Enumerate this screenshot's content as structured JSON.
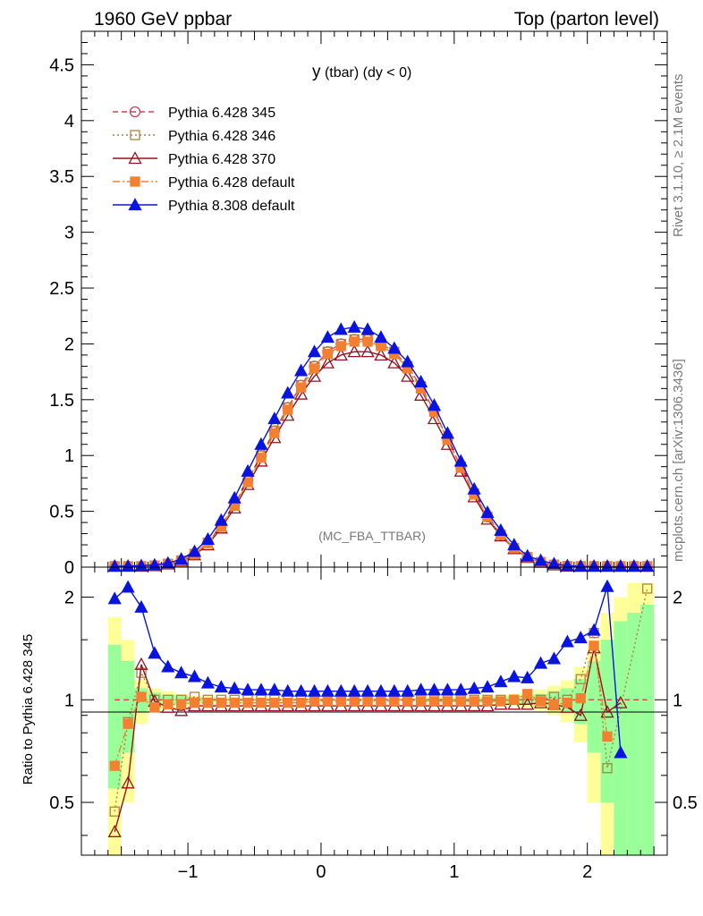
{
  "header": {
    "left": "1960 GeV ppbar",
    "right": "Top (parton level)"
  },
  "plot": {
    "title_main": "y",
    "title_rest": " (tbar) (dy < 0)",
    "watermark": "(MC_FBA_TTBAR)",
    "side_text_1": "Rivet 3.1.10, ≥ 2.1M events",
    "side_text_2": "mcplots.cern.ch [arXiv:1306.3436]",
    "ratio_ylabel": "Ratio to Pythia 6.428 345"
  },
  "colors": {
    "p345": "#d0405a",
    "p346": "#b08040",
    "p370": "#9a1020",
    "p6def": "#f28030",
    "p8def": "#0a14e0",
    "band_yellow": "#ffff99",
    "band_green": "#99ff99"
  },
  "chart_data": [
    {
      "type": "line",
      "panel": "main",
      "xlim": [
        -1.8,
        2.6
      ],
      "ylim": [
        0,
        4.8
      ],
      "yticks": [
        "0",
        "0.5",
        "1",
        "1.5",
        "2",
        "2.5",
        "3",
        "3.5",
        "4",
        "4.5"
      ],
      "legend_position": "top-left",
      "x": [
        -1.55,
        -1.45,
        -1.35,
        -1.25,
        -1.15,
        -1.05,
        -0.95,
        -0.85,
        -0.75,
        -0.65,
        -0.55,
        -0.45,
        -0.35,
        -0.25,
        -0.15,
        -0.05,
        0.05,
        0.15,
        0.25,
        0.35,
        0.45,
        0.55,
        0.65,
        0.75,
        0.85,
        0.95,
        1.05,
        1.15,
        1.25,
        1.35,
        1.45,
        1.55,
        1.65,
        1.75,
        1.85,
        1.95,
        2.05,
        2.15,
        2.25,
        2.35,
        2.45
      ],
      "series": [
        {
          "name": "Pythia 6.428 345",
          "key": "p345",
          "marker": "circle-open",
          "dash": "6,4",
          "values": [
            0.003,
            0.004,
            0.007,
            0.014,
            0.03,
            0.06,
            0.12,
            0.22,
            0.37,
            0.56,
            0.78,
            1.0,
            1.22,
            1.43,
            1.63,
            1.8,
            1.93,
            2.0,
            2.04,
            2.04,
            2.0,
            1.93,
            1.8,
            1.62,
            1.4,
            1.15,
            0.9,
            0.66,
            0.45,
            0.29,
            0.17,
            0.09,
            0.045,
            0.021,
            0.009,
            0.004,
            0.002,
            0.001,
            0.0005,
            0.0002,
            0.0001
          ]
        },
        {
          "name": "Pythia 6.428 346",
          "key": "p346",
          "marker": "square-open",
          "dash": "2,3",
          "values": [
            0.003,
            0.004,
            0.007,
            0.014,
            0.03,
            0.06,
            0.12,
            0.22,
            0.37,
            0.56,
            0.78,
            1.0,
            1.22,
            1.43,
            1.63,
            1.8,
            1.93,
            2.0,
            2.04,
            2.04,
            2.0,
            1.93,
            1.8,
            1.62,
            1.4,
            1.15,
            0.9,
            0.66,
            0.45,
            0.29,
            0.17,
            0.09,
            0.045,
            0.021,
            0.009,
            0.004,
            0.002,
            0.001,
            0.0005,
            0.0002,
            0.0001
          ]
        },
        {
          "name": "Pythia 6.428 370",
          "key": "p370",
          "marker": "triangle-open",
          "dash": "",
          "values": [
            0.002,
            0.003,
            0.007,
            0.013,
            0.028,
            0.055,
            0.11,
            0.2,
            0.35,
            0.53,
            0.74,
            0.95,
            1.16,
            1.36,
            1.55,
            1.71,
            1.83,
            1.9,
            1.93,
            1.93,
            1.9,
            1.83,
            1.71,
            1.54,
            1.33,
            1.1,
            0.86,
            0.63,
            0.43,
            0.28,
            0.165,
            0.087,
            0.043,
            0.02,
            0.009,
            0.004,
            0.002,
            0.001,
            0.0005,
            0.0002,
            0.0001
          ]
        },
        {
          "name": "Pythia 6.428 default",
          "key": "p6def",
          "marker": "square-filled",
          "dash": "8,3,2,3",
          "values": [
            0.002,
            0.003,
            0.007,
            0.014,
            0.029,
            0.058,
            0.117,
            0.215,
            0.36,
            0.55,
            0.76,
            0.98,
            1.2,
            1.41,
            1.61,
            1.78,
            1.91,
            1.98,
            2.02,
            2.02,
            1.98,
            1.91,
            1.78,
            1.6,
            1.39,
            1.14,
            0.89,
            0.65,
            0.45,
            0.29,
            0.17,
            0.09,
            0.045,
            0.021,
            0.009,
            0.004,
            0.002,
            0.001,
            0.0005,
            0.0002,
            0.0001
          ]
        },
        {
          "name": "Pythia 8.308 default",
          "key": "p8def",
          "marker": "triangle-filled",
          "dash": "",
          "values": [
            0.006,
            0.009,
            0.013,
            0.019,
            0.036,
            0.072,
            0.14,
            0.25,
            0.42,
            0.62,
            0.86,
            1.1,
            1.33,
            1.56,
            1.76,
            1.93,
            2.06,
            2.13,
            2.15,
            2.13,
            2.06,
            1.96,
            1.84,
            1.66,
            1.45,
            1.2,
            0.95,
            0.7,
            0.49,
            0.33,
            0.2,
            0.1,
            0.06,
            0.03,
            0.013,
            0.006,
            0.003,
            0.002,
            0.001,
            0.0005,
            0.0003
          ]
        }
      ]
    },
    {
      "type": "line",
      "panel": "ratio",
      "xlim": [
        -1.8,
        2.6
      ],
      "ylim": [
        0.35,
        2.45
      ],
      "ylabel": "Ratio to Pythia 6.428 345",
      "xticks": [
        "−1",
        "0",
        "1",
        "2"
      ],
      "yticks": [
        "0.5",
        "1",
        "2"
      ],
      "x": [
        -1.55,
        -1.45,
        -1.35,
        -1.25,
        -1.15,
        -1.05,
        -0.95,
        -0.85,
        -0.75,
        -0.65,
        -0.55,
        -0.45,
        -0.35,
        -0.25,
        -0.15,
        -0.05,
        0.05,
        0.15,
        0.25,
        0.35,
        0.45,
        0.55,
        0.65,
        0.75,
        0.85,
        0.95,
        1.05,
        1.15,
        1.25,
        1.35,
        1.45,
        1.55,
        1.65,
        1.75,
        1.85,
        1.95,
        2.05,
        2.15,
        2.25,
        2.35,
        2.45
      ],
      "bands": {
        "yellow_halfwidth": [
          0.75,
          0.5,
          0.15,
          0.08,
          0.06,
          0.04,
          0.03,
          0.025,
          0.02,
          0.02,
          0.015,
          0.015,
          0.015,
          0.015,
          0.012,
          0.012,
          0.012,
          0.012,
          0.012,
          0.012,
          0.012,
          0.012,
          0.012,
          0.015,
          0.015,
          0.015,
          0.02,
          0.02,
          0.025,
          0.03,
          0.04,
          0.05,
          0.07,
          0.1,
          0.14,
          0.25,
          0.5,
          0.8,
          1.0,
          1.2,
          1.2
        ],
        "green_halfwidth": [
          0.45,
          0.3,
          0.08,
          0.05,
          0.035,
          0.03,
          0.02,
          0.015,
          0.012,
          0.01,
          0.01,
          0.008,
          0.008,
          0.008,
          0.007,
          0.007,
          0.007,
          0.007,
          0.007,
          0.007,
          0.007,
          0.007,
          0.007,
          0.008,
          0.008,
          0.01,
          0.01,
          0.012,
          0.015,
          0.02,
          0.025,
          0.03,
          0.04,
          0.06,
          0.08,
          0.15,
          0.3,
          0.5,
          0.7,
          0.8,
          0.9
        ]
      },
      "series": [
        {
          "name": "Pythia 6.428 345",
          "key": "p345",
          "marker": "circle-open",
          "dash": "6,4",
          "values": [
            1,
            1,
            1,
            1,
            1,
            1,
            1,
            1,
            1,
            1,
            1,
            1,
            1,
            1,
            1,
            1,
            1,
            1,
            1,
            1,
            1,
            1,
            1,
            1,
            1,
            1,
            1,
            1,
            1,
            1,
            1,
            1,
            1,
            1,
            1,
            1,
            1,
            1,
            1,
            1,
            1
          ]
        },
        {
          "name": "Pythia 6.428 346",
          "key": "p346",
          "marker": "square-open",
          "dash": "2,3",
          "values": [
            0.47,
            0.86,
            1.2,
            1.0,
            1.0,
            1.0,
            1.02,
            1.0,
            1.0,
            1.0,
            1.0,
            1.0,
            1.0,
            1.0,
            1.0,
            1.0,
            1.0,
            1.0,
            1.0,
            1.0,
            1.0,
            1.0,
            1.0,
            1.0,
            1.0,
            1.0,
            1.0,
            1.0,
            1.0,
            1.0,
            1.0,
            1.0,
            1.0,
            1.02,
            1.0,
            1.15,
            1.57,
            0.63,
            null,
            null,
            2.12
          ]
        },
        {
          "name": "Pythia 6.428 370",
          "key": "p370",
          "marker": "triangle-open",
          "dash": "",
          "values": [
            0.41,
            0.57,
            1.27,
            0.99,
            0.95,
            0.93,
            0.96,
            0.96,
            0.96,
            0.96,
            0.96,
            0.96,
            0.96,
            0.96,
            0.96,
            0.96,
            0.96,
            0.96,
            0.96,
            0.96,
            0.96,
            0.96,
            0.96,
            0.96,
            0.96,
            0.96,
            0.96,
            0.96,
            0.96,
            0.97,
            0.97,
            0.97,
            0.98,
            0.97,
            0.95,
            0.9,
            1.42,
            0.92,
            0.98,
            null,
            null
          ]
        },
        {
          "name": "Pythia 6.428 default",
          "key": "p6def",
          "marker": "square-filled",
          "dash": "8,3,2,3",
          "values": [
            0.64,
            0.85,
            1.02,
            0.95,
            0.97,
            0.97,
            0.98,
            0.98,
            0.98,
            0.98,
            0.98,
            0.98,
            0.98,
            0.98,
            0.98,
            0.99,
            0.99,
            0.99,
            0.99,
            0.99,
            0.99,
            0.99,
            0.99,
            0.99,
            0.99,
            0.99,
            0.99,
            0.99,
            0.99,
            0.99,
            1.0,
            1.04,
            0.99,
            0.97,
            0.98,
            1.01,
            1.44,
            0.78,
            null,
            null,
            null
          ]
        },
        {
          "name": "Pythia 8.308 default",
          "key": "p8def",
          "marker": "triangle-filled",
          "dash": "",
          "values": [
            1.98,
            2.14,
            1.87,
            1.37,
            1.25,
            1.2,
            1.17,
            1.12,
            1.09,
            1.08,
            1.07,
            1.07,
            1.07,
            1.06,
            1.06,
            1.06,
            1.06,
            1.06,
            1.06,
            1.06,
            1.06,
            1.06,
            1.06,
            1.07,
            1.07,
            1.07,
            1.07,
            1.08,
            1.09,
            1.13,
            1.17,
            1.16,
            1.28,
            1.32,
            1.48,
            1.52,
            1.6,
            2.15,
            0.7,
            null,
            null
          ]
        }
      ]
    }
  ]
}
